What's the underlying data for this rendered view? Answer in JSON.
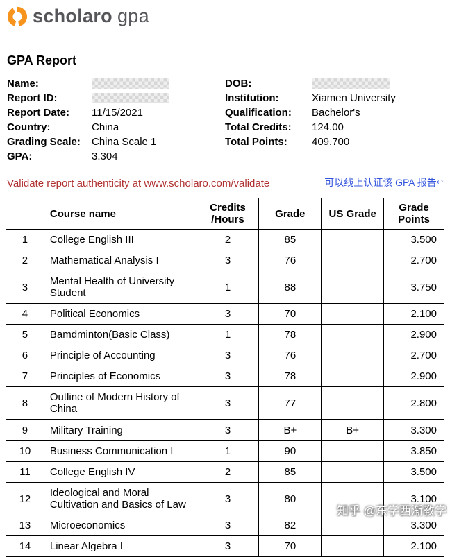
{
  "logo": {
    "brand": "scholaro",
    "product": "gpa"
  },
  "report": {
    "title": "GPA Report",
    "validate_text": "Validate report authenticity at www.scholaro.com/validate",
    "annotation": {
      "text": "可以线上认证该 GPA 报告",
      "icon": "↩"
    }
  },
  "info": {
    "left": [
      {
        "label": "Name:",
        "value": "",
        "redacted": true
      },
      {
        "label": "Report ID:",
        "value": "",
        "redacted": true
      },
      {
        "label": "Report Date:",
        "value": "11/15/2021"
      },
      {
        "label": "Country:",
        "value": "China"
      },
      {
        "label": "Grading Scale:",
        "value": "China Scale 1"
      },
      {
        "label": "GPA:",
        "value": "3.304"
      }
    ],
    "right": [
      {
        "label": "DOB:",
        "value": "",
        "redacted": true
      },
      {
        "label": "Institution:",
        "value": "Xiamen University"
      },
      {
        "label": "Qualification:",
        "value": "Bachelor's"
      },
      {
        "label": "Total Credits:",
        "value": "124.00"
      },
      {
        "label": "Total Points:",
        "value": "409.700"
      }
    ]
  },
  "table": {
    "headers": [
      "",
      "Course name",
      "Credits\n/Hours",
      "Grade",
      "US Grade",
      "Grade\nPoints"
    ],
    "rows": [
      {
        "num": "1",
        "course": "College English III",
        "credits": "2",
        "grade": "85",
        "us": "",
        "points": "3.500"
      },
      {
        "num": "2",
        "course": "Mathematical Analysis I",
        "credits": "3",
        "grade": "76",
        "us": "",
        "points": "2.700"
      },
      {
        "num": "3",
        "course": "Mental Health of University Student",
        "credits": "1",
        "grade": "88",
        "us": "",
        "points": "3.750"
      },
      {
        "num": "4",
        "course": "Political Economics",
        "credits": "3",
        "grade": "70",
        "us": "",
        "points": "2.100"
      },
      {
        "num": "5",
        "course": "Bamdminton(Basic Class)",
        "credits": "1",
        "grade": "78",
        "us": "",
        "points": "2.900"
      },
      {
        "num": "6",
        "course": "Principle of Accounting",
        "credits": "3",
        "grade": "76",
        "us": "",
        "points": "2.700"
      },
      {
        "num": "7",
        "course": "Principles of Economics",
        "credits": "3",
        "grade": "78",
        "us": "",
        "points": "2.900"
      },
      {
        "num": "8",
        "course": "Outline of Modern History of China",
        "credits": "3",
        "grade": "77",
        "us": "",
        "points": "2.800"
      },
      {
        "num": "9",
        "course": "Military Training",
        "credits": "3",
        "grade": "B+",
        "us": "B+",
        "points": "3.300",
        "group_start": true
      },
      {
        "num": "10",
        "course": "Business Communication I",
        "credits": "1",
        "grade": "90",
        "us": "",
        "points": "3.850"
      },
      {
        "num": "11",
        "course": "College English IV",
        "credits": "2",
        "grade": "85",
        "us": "",
        "points": "3.500"
      },
      {
        "num": "12",
        "course": "Ideological and Moral Cultivation and Basics of Law",
        "credits": "3",
        "grade": "80",
        "us": "",
        "points": "3.100"
      },
      {
        "num": "13",
        "course": "Microeconomics",
        "credits": "3",
        "grade": "82",
        "us": "",
        "points": "3.300"
      },
      {
        "num": "14",
        "course": "Linear Algebra I",
        "credits": "3",
        "grade": "70",
        "us": "",
        "points": "2.100"
      }
    ]
  },
  "watermark": "知乎 @东学西渐教学",
  "colors": {
    "logo_orange": "#f7941e",
    "logo_gray": "#55565a",
    "validate_red": "#b03030",
    "annotation_blue": "#3355dd"
  }
}
